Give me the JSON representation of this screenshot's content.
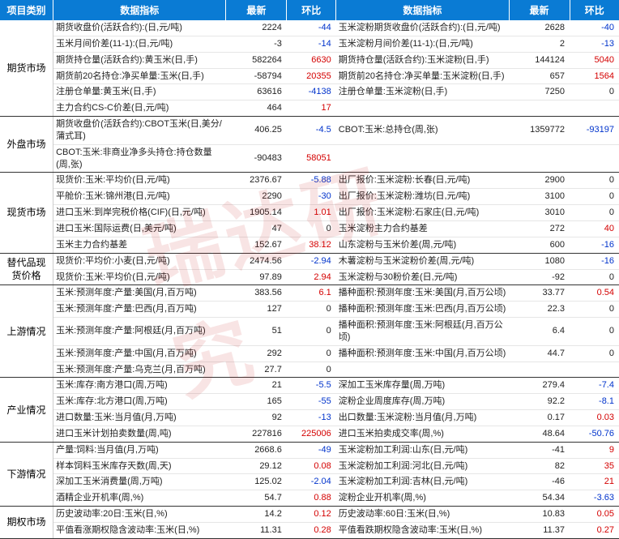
{
  "headers": {
    "category": "项目类别",
    "indicator": "数据指标",
    "latest": "最新",
    "change": "环比"
  },
  "colors": {
    "header_bg": "#0a7bd4",
    "header_fg": "#ffffff",
    "neg": "#0033cc",
    "pos": "#d40000",
    "text": "#222222",
    "border": "#e6e6e6",
    "section_border": "#333333"
  },
  "sections": [
    {
      "category": "期货市场",
      "rows": [
        {
          "l_ind": "期货收盘价(活跃合约):(日,元/吨)",
          "l_val": "2224",
          "l_chg": "-44",
          "r_ind": "玉米淀粉期货收盘价(活跃合约):(日,元/吨)",
          "r_val": "2628",
          "r_chg": "-40"
        },
        {
          "l_ind": "玉米月间价差(11-1):(日,元/吨)",
          "l_val": "-3",
          "l_chg": "-14",
          "r_ind": "玉米淀粉月间价差(11-1):(日,元/吨)",
          "r_val": "2",
          "r_chg": "-13"
        },
        {
          "l_ind": "期货持仓量(活跃合约):黄玉米(日,手)",
          "l_val": "582264",
          "l_chg": "6630",
          "r_ind": "期货持仓量(活跃合约):玉米淀粉(日,手)",
          "r_val": "144124",
          "r_chg": "5040"
        },
        {
          "l_ind": "期货前20名持仓:净买单量:玉米(日,手)",
          "l_val": "-58794",
          "l_chg": "20355",
          "r_ind": "期货前20名持仓:净买单量:玉米淀粉(日,手)",
          "r_val": "657",
          "r_chg": "1564"
        },
        {
          "l_ind": "注册仓单量:黄玉米(日,手)",
          "l_val": "63616",
          "l_chg": "-4138",
          "r_ind": "注册仓单量:玉米淀粉(日,手)",
          "r_val": "7250",
          "r_chg": "0"
        },
        {
          "l_ind": "主力合约CS-C价差(日,元/吨)",
          "l_val": "464",
          "l_chg": "17",
          "r_ind": "",
          "r_val": "",
          "r_chg": ""
        }
      ]
    },
    {
      "category": "外盘市场",
      "rows": [
        {
          "l_ind": "期货收盘价(活跃合约):CBOT玉米(日,美分/蒲式耳)",
          "l_val": "406.25",
          "l_chg": "-4.5",
          "r_ind": "CBOT:玉米:总持仓(周,张)",
          "r_val": "1359772",
          "r_chg": "-93197"
        },
        {
          "l_ind": "CBOT:玉米:非商业净多头持仓:持仓数量(周,张)",
          "l_val": "-90483",
          "l_chg": "58051",
          "r_ind": "",
          "r_val": "",
          "r_chg": ""
        }
      ]
    },
    {
      "category": "现货市场",
      "rows": [
        {
          "l_ind": "现货价:玉米:平均价(日,元/吨)",
          "l_val": "2376.67",
          "l_chg": "-5.88",
          "r_ind": "出厂报价:玉米淀粉:长春(日,元/吨)",
          "r_val": "2900",
          "r_chg": "0"
        },
        {
          "l_ind": "平舱价:玉米:锦州港(日,元/吨)",
          "l_val": "2290",
          "l_chg": "-30",
          "r_ind": "出厂报价:玉米淀粉:潍坊(日,元/吨)",
          "r_val": "3100",
          "r_chg": "0"
        },
        {
          "l_ind": "进口玉米:到岸完税价格(CIF)(日,元/吨)",
          "l_val": "1905.14",
          "l_chg": "1.01",
          "r_ind": "出厂报价:玉米淀粉:石家庄(日,元/吨)",
          "r_val": "3010",
          "r_chg": "0"
        },
        {
          "l_ind": "进口玉米:国际运费(日,美元/吨)",
          "l_val": "47",
          "l_chg": "0",
          "r_ind": "玉米淀粉主力合约基差",
          "r_val": "272",
          "r_chg": "40"
        },
        {
          "l_ind": "玉米主力合约基差",
          "l_val": "152.67",
          "l_chg": "38.12",
          "r_ind": "山东淀粉与玉米价差(周,元/吨)",
          "r_val": "600",
          "r_chg": "-16"
        }
      ]
    },
    {
      "category": "替代品现货价格",
      "rows": [
        {
          "l_ind": "现货价:平均价:小麦(日,元/吨)",
          "l_val": "2474.56",
          "l_chg": "-2.94",
          "r_ind": "木薯淀粉与玉米淀粉价差(周,元/吨)",
          "r_val": "1080",
          "r_chg": "-16"
        },
        {
          "l_ind": "现货价:玉米:平均价(日,元/吨)",
          "l_val": "97.89",
          "l_chg": "2.94",
          "r_ind": "玉米淀粉与30粉价差(日,元/吨)",
          "r_val": "-92",
          "r_chg": "0"
        }
      ]
    },
    {
      "category": "上游情况",
      "rows": [
        {
          "l_ind": "玉米:预测年度:产量:美国(月,百万吨)",
          "l_val": "383.56",
          "l_chg": "6.1",
          "r_ind": "播种面积:预测年度:玉米:美国(月,百万公顷)",
          "r_val": "33.77",
          "r_chg": "0.54"
        },
        {
          "l_ind": "玉米:预测年度:产量:巴西(月,百万吨)",
          "l_val": "127",
          "l_chg": "0",
          "r_ind": "播种面积:预测年度:玉米:巴西(月,百万公顷)",
          "r_val": "22.3",
          "r_chg": "0"
        },
        {
          "l_ind": "玉米:预测年度:产量:阿根廷(月,百万吨)",
          "l_val": "51",
          "l_chg": "0",
          "r_ind": "播种面积:预测年度:玉米:阿根廷(月,百万公顷)",
          "r_val": "6.4",
          "r_chg": "0"
        },
        {
          "l_ind": "玉米:预测年度:产量:中国(月,百万吨)",
          "l_val": "292",
          "l_chg": "0",
          "r_ind": "播种面积:预测年度:玉米:中国(月,百万公顷)",
          "r_val": "44.7",
          "r_chg": "0"
        },
        {
          "l_ind": "玉米:预测年度:产量:乌克兰(月,百万吨)",
          "l_val": "27.7",
          "l_chg": "0",
          "r_ind": "",
          "r_val": "",
          "r_chg": ""
        }
      ]
    },
    {
      "category": "产业情况",
      "rows": [
        {
          "l_ind": "玉米:库存:南方港口(周,万吨)",
          "l_val": "21",
          "l_chg": "-5.5",
          "r_ind": "深加工玉米库存量(周,万吨)",
          "r_val": "279.4",
          "r_chg": "-7.4"
        },
        {
          "l_ind": "玉米:库存:北方港口(周,万吨)",
          "l_val": "165",
          "l_chg": "-55",
          "r_ind": "淀粉企业周度库存(周,万吨)",
          "r_val": "92.2",
          "r_chg": "-8.1"
        },
        {
          "l_ind": "进口数量:玉米:当月值(月,万吨)",
          "l_val": "92",
          "l_chg": "-13",
          "r_ind": "出口数量:玉米淀粉:当月值(月,万吨)",
          "r_val": "0.17",
          "r_chg": "0.03"
        },
        {
          "l_ind": "进口玉米计划拍卖数量(周,吨)",
          "l_val": "227816",
          "l_chg": "225006",
          "r_ind": "进口玉米拍卖成交率(周,%)",
          "r_val": "48.64",
          "r_chg": "-50.76"
        }
      ]
    },
    {
      "category": "下游情况",
      "rows": [
        {
          "l_ind": "产量:饲料:当月值(月,万吨)",
          "l_val": "2668.6",
          "l_chg": "-49",
          "r_ind": "玉米淀粉加工利润:山东(日,元/吨)",
          "r_val": "-41",
          "r_chg": "9"
        },
        {
          "l_ind": "样本饲料玉米库存天数(周,天)",
          "l_val": "29.12",
          "l_chg": "0.08",
          "r_ind": "玉米淀粉加工利润:河北(日,元/吨)",
          "r_val": "82",
          "r_chg": "35"
        },
        {
          "l_ind": "深加工玉米消费量(周,万吨)",
          "l_val": "125.02",
          "l_chg": "-2.04",
          "r_ind": "玉米淀粉加工利润:吉林(日,元/吨)",
          "r_val": "-46",
          "r_chg": "21"
        },
        {
          "l_ind": "酒精企业开机率(周,%)",
          "l_val": "54.7",
          "l_chg": "0.88",
          "r_ind": "淀粉企业开机率(周,%)",
          "r_val": "54.34",
          "r_chg": "-3.63"
        }
      ]
    },
    {
      "category": "期权市场",
      "rows": [
        {
          "l_ind": "历史波动率:20日:玉米(日,%)",
          "l_val": "14.2",
          "l_chg": "0.12",
          "r_ind": "历史波动率:60日:玉米(日,%)",
          "r_val": "10.83",
          "r_chg": "0.05"
        },
        {
          "l_ind": "平值看涨期权隐含波动率:玉米(日,%)",
          "l_val": "11.31",
          "l_chg": "0.28",
          "r_ind": "平值看跌期权隐含波动率:玉米(日,%)",
          "r_val": "11.37",
          "r_chg": "0.27"
        }
      ]
    }
  ]
}
